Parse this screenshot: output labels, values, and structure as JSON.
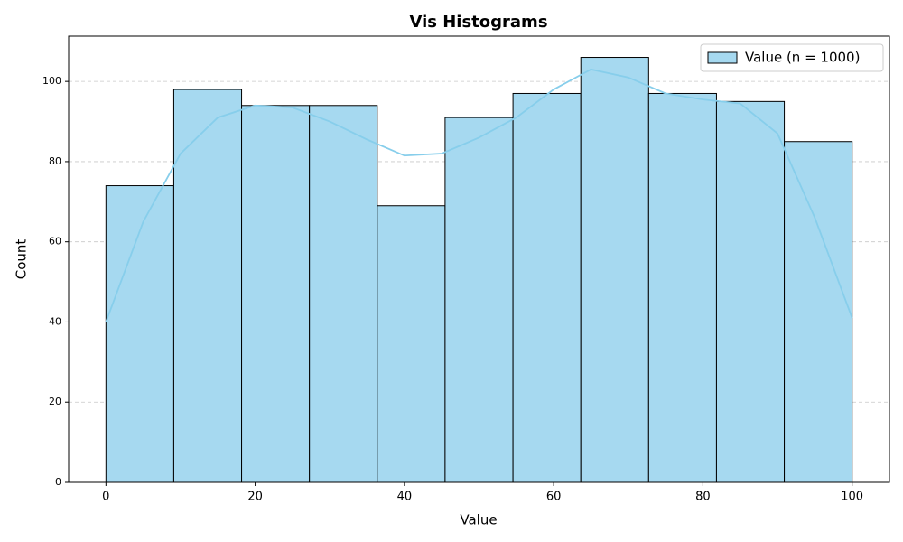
{
  "chart_data": {
    "type": "histogram",
    "title": "Vis Histograms",
    "x_label": "Value",
    "y_label": "Count",
    "bins": [
      0,
      9.09,
      18.18,
      27.27,
      36.36,
      45.45,
      54.55,
      63.64,
      72.73,
      81.82,
      90.91,
      100
    ],
    "series": [
      {
        "name": "Value (n = 1000)",
        "color": "#a6d9f0",
        "edge_color": "#000000",
        "values": [
          74,
          98,
          94,
          94,
          69,
          91,
          97,
          106,
          97,
          95,
          85
        ]
      }
    ],
    "kde": {
      "color": "#87ceeb",
      "x": [
        0,
        5,
        10,
        15,
        20,
        25,
        30,
        35,
        40,
        45,
        50,
        55,
        60,
        65,
        70,
        75,
        80,
        85,
        90,
        95,
        100
      ],
      "values": [
        40,
        65,
        82,
        91,
        94,
        93.5,
        90,
        85.5,
        81.5,
        82,
        86,
        91,
        98,
        103,
        101,
        97,
        95.5,
        94.5,
        87,
        66,
        41
      ]
    },
    "xlim": [
      -5,
      105
    ],
    "ylim": [
      0,
      111.3
    ],
    "xticks": [
      0,
      20,
      40,
      60,
      80,
      100
    ],
    "yticks": [
      0,
      20,
      40,
      60,
      80,
      100
    ],
    "grid": true,
    "legend": "upper right"
  }
}
